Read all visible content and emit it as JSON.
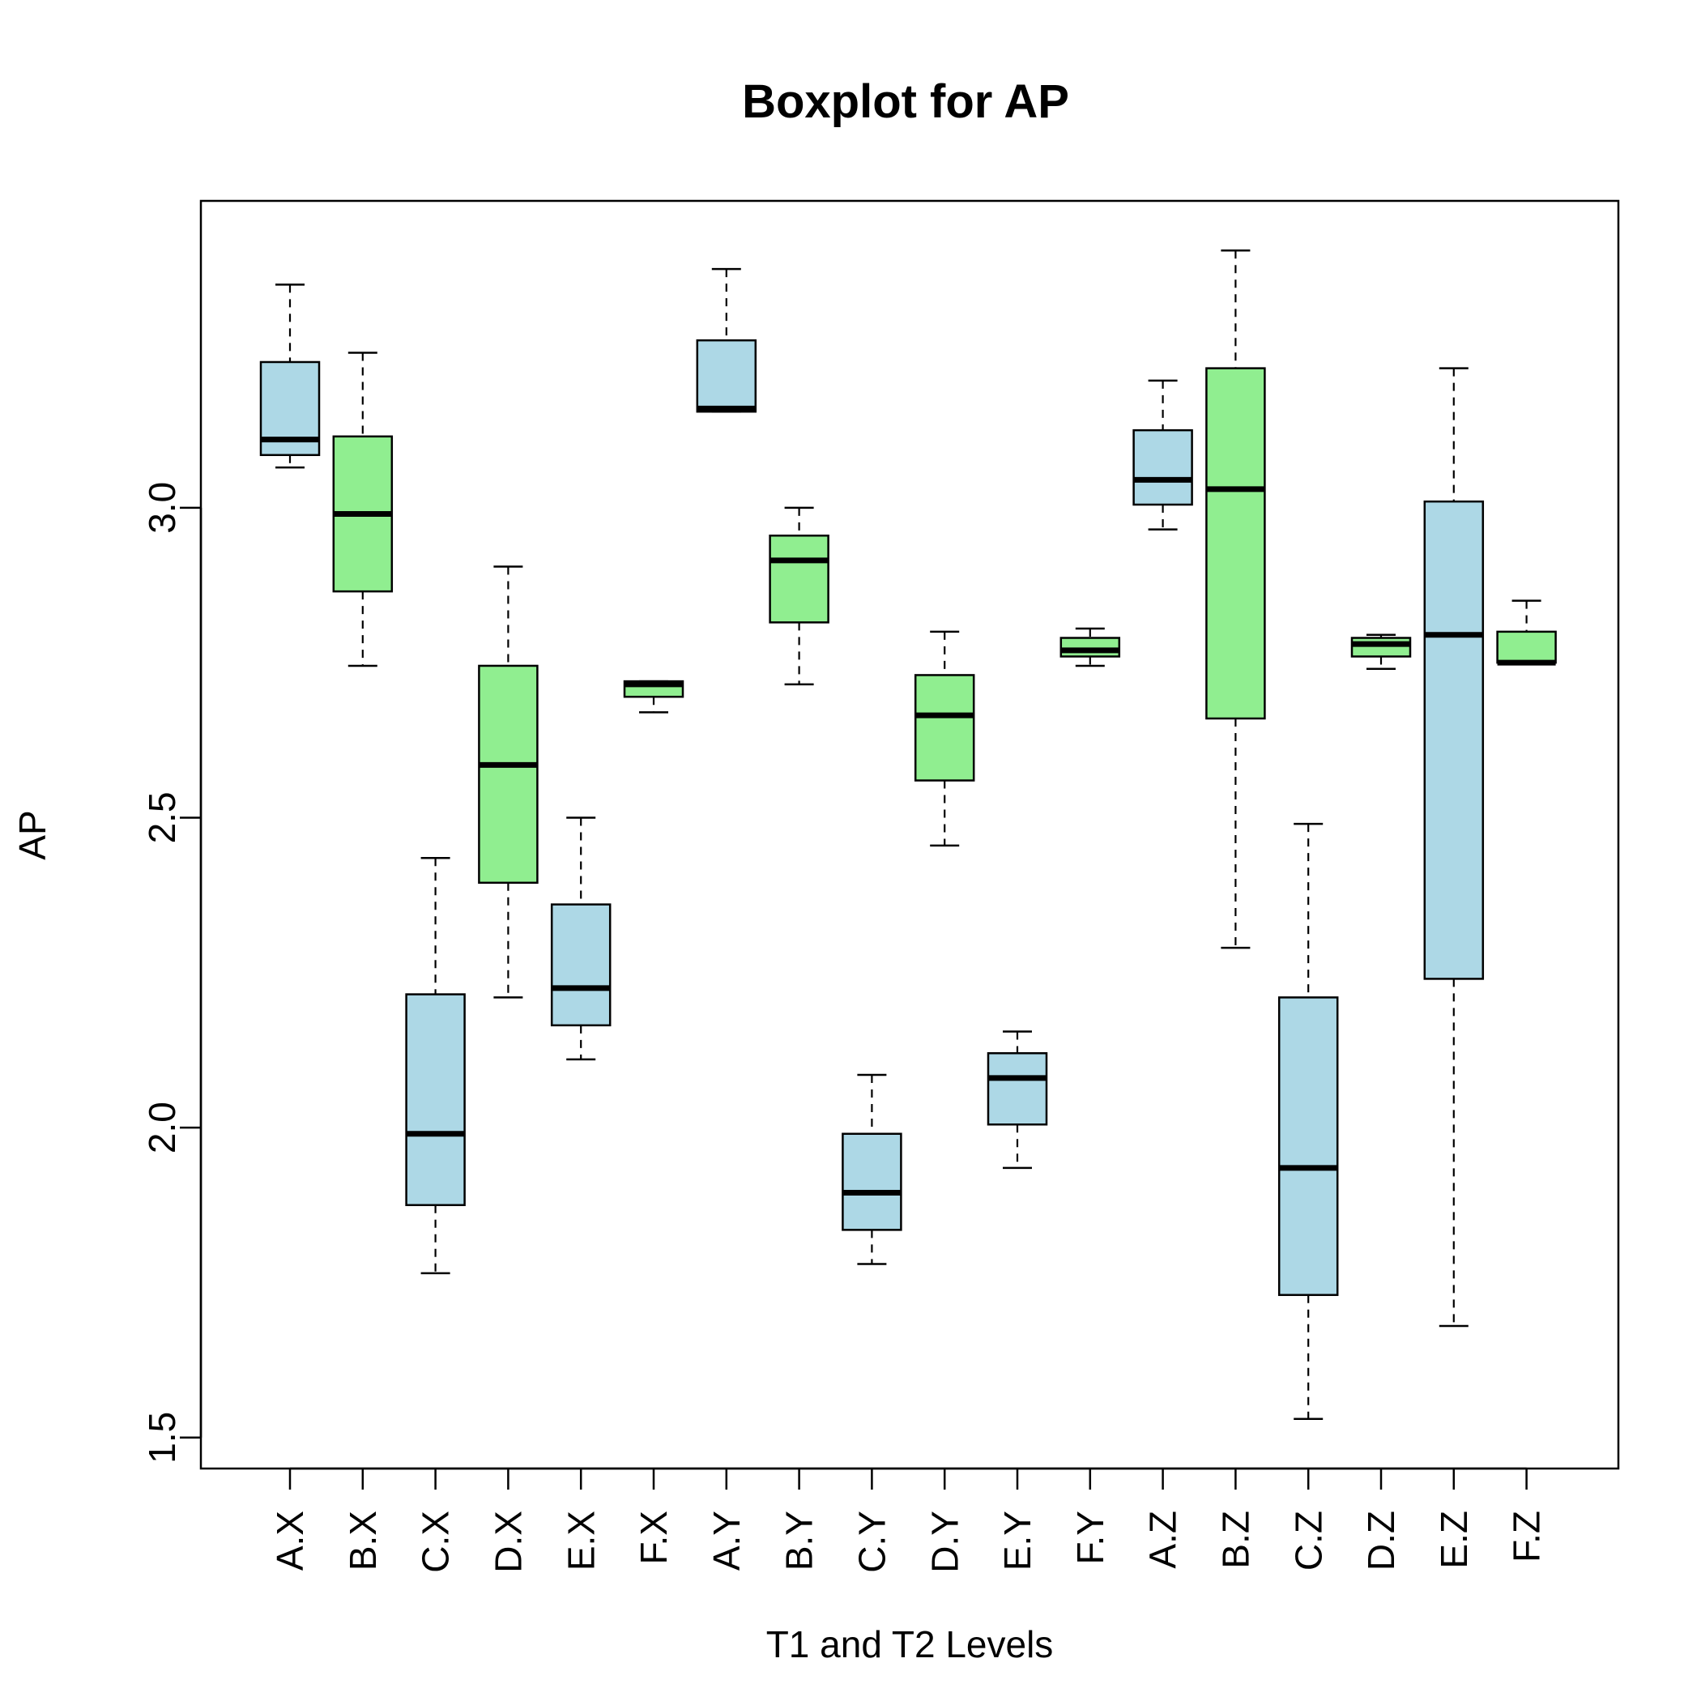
{
  "chart_data": {
    "type": "boxplot",
    "title": "Boxplot for AP",
    "xlabel": "T1 and T2 Levels",
    "ylabel": "AP",
    "ylim": [
      1.45,
      3.495
    ],
    "yticks": [
      "1.5",
      "2.0",
      "2.5",
      "3.0"
    ],
    "ytick_values": [
      1.5,
      2.0,
      2.5,
      3.0
    ],
    "grid": false,
    "colors": {
      "blue": "#add8e6",
      "green": "#90ee90"
    },
    "boxes": [
      {
        "label": "A.X",
        "fill": "blue",
        "min": 3.065,
        "q1": 3.085,
        "median": 3.11,
        "q3": 3.235,
        "max": 3.36
      },
      {
        "label": "B.X",
        "fill": "green",
        "min": 2.745,
        "q1": 2.865,
        "median": 2.99,
        "q3": 3.115,
        "max": 3.25
      },
      {
        "label": "C.X",
        "fill": "blue",
        "min": 1.765,
        "q1": 1.875,
        "median": 1.99,
        "q3": 2.215,
        "max": 2.435
      },
      {
        "label": "D.X",
        "fill": "green",
        "min": 2.21,
        "q1": 2.395,
        "median": 2.585,
        "q3": 2.745,
        "max": 2.905
      },
      {
        "label": "E.X",
        "fill": "blue",
        "min": 2.11,
        "q1": 2.165,
        "median": 2.225,
        "q3": 2.36,
        "max": 2.5
      },
      {
        "label": "F.X",
        "fill": "green",
        "min": 2.67,
        "q1": 2.695,
        "median": 2.715,
        "q3": 2.72,
        "max": 2.72
      },
      {
        "label": "A.Y",
        "fill": "blue",
        "min": 3.155,
        "q1": 3.155,
        "median": 3.16,
        "q3": 3.27,
        "max": 3.385
      },
      {
        "label": "B.Y",
        "fill": "green",
        "min": 2.715,
        "q1": 2.815,
        "median": 2.915,
        "q3": 2.955,
        "max": 3.0
      },
      {
        "label": "C.Y",
        "fill": "blue",
        "min": 1.78,
        "q1": 1.835,
        "median": 1.895,
        "q3": 1.99,
        "max": 2.085
      },
      {
        "label": "D.Y",
        "fill": "green",
        "min": 2.455,
        "q1": 2.56,
        "median": 2.665,
        "q3": 2.73,
        "max": 2.8
      },
      {
        "label": "E.Y",
        "fill": "blue",
        "min": 1.935,
        "q1": 2.005,
        "median": 2.08,
        "q3": 2.12,
        "max": 2.155
      },
      {
        "label": "F.Y",
        "fill": "green",
        "min": 2.745,
        "q1": 2.76,
        "median": 2.77,
        "q3": 2.79,
        "max": 2.805
      },
      {
        "label": "A.Z",
        "fill": "blue",
        "min": 2.965,
        "q1": 3.005,
        "median": 3.045,
        "q3": 3.125,
        "max": 3.205
      },
      {
        "label": "B.Z",
        "fill": "green",
        "min": 2.29,
        "q1": 2.66,
        "median": 3.03,
        "q3": 3.225,
        "max": 3.415
      },
      {
        "label": "C.Z",
        "fill": "blue",
        "min": 1.53,
        "q1": 1.73,
        "median": 1.935,
        "q3": 2.21,
        "max": 2.49
      },
      {
        "label": "D.Z",
        "fill": "green",
        "min": 2.74,
        "q1": 2.76,
        "median": 2.78,
        "q3": 2.79,
        "max": 2.795
      },
      {
        "label": "E.Z",
        "fill": "blue",
        "min": 1.68,
        "q1": 2.24,
        "median": 2.795,
        "q3": 3.01,
        "max": 3.225
      },
      {
        "label": "F.Z",
        "fill": "green",
        "min": 2.75,
        "q1": 2.75,
        "median": 2.75,
        "q3": 2.8,
        "max": 2.85
      }
    ]
  }
}
